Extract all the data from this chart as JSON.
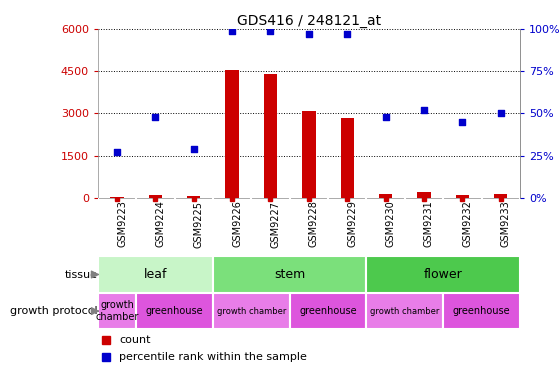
{
  "title": "GDS416 / 248121_at",
  "samples": [
    "GSM9223",
    "GSM9224",
    "GSM9225",
    "GSM9226",
    "GSM9227",
    "GSM9228",
    "GSM9229",
    "GSM9230",
    "GSM9231",
    "GSM9232",
    "GSM9233"
  ],
  "counts": [
    30,
    80,
    60,
    4550,
    4400,
    3100,
    2850,
    120,
    200,
    80,
    120
  ],
  "percentiles": [
    27,
    48,
    29,
    99,
    99,
    97,
    97,
    48,
    52,
    45,
    50
  ],
  "ylim_left": [
    0,
    6000
  ],
  "ylim_right": [
    0,
    100
  ],
  "yticks_left": [
    0,
    1500,
    3000,
    4500,
    6000
  ],
  "yticks_right": [
    0,
    25,
    50,
    75,
    100
  ],
  "tissue_groups": [
    {
      "label": "leaf",
      "start": 0,
      "end": 3,
      "color": "#c8f5c8"
    },
    {
      "label": "stem",
      "start": 3,
      "end": 7,
      "color": "#7be07b"
    },
    {
      "label": "flower",
      "start": 7,
      "end": 11,
      "color": "#4dc94d"
    }
  ],
  "growth_protocol_groups": [
    {
      "label": "growth\nchamber",
      "start": 0,
      "end": 1,
      "color": "#e87de8"
    },
    {
      "label": "greenhouse",
      "start": 1,
      "end": 3,
      "color": "#dd55dd"
    },
    {
      "label": "growth chamber",
      "start": 3,
      "end": 5,
      "color": "#e87de8"
    },
    {
      "label": "greenhouse",
      "start": 5,
      "end": 7,
      "color": "#dd55dd"
    },
    {
      "label": "growth chamber",
      "start": 7,
      "end": 9,
      "color": "#e87de8"
    },
    {
      "label": "greenhouse",
      "start": 9,
      "end": 11,
      "color": "#dd55dd"
    }
  ],
  "bar_color": "#cc0000",
  "dot_color": "#0000cc",
  "count_label": "count",
  "percentile_label": "percentile rank within the sample",
  "tissue_label": "tissue",
  "growth_label": "growth protocol",
  "left_ylabel_color": "#cc0000",
  "right_ylabel_color": "#0000cc",
  "bg_color": "#ffffff",
  "xticklabel_bg": "#d8d8d8"
}
